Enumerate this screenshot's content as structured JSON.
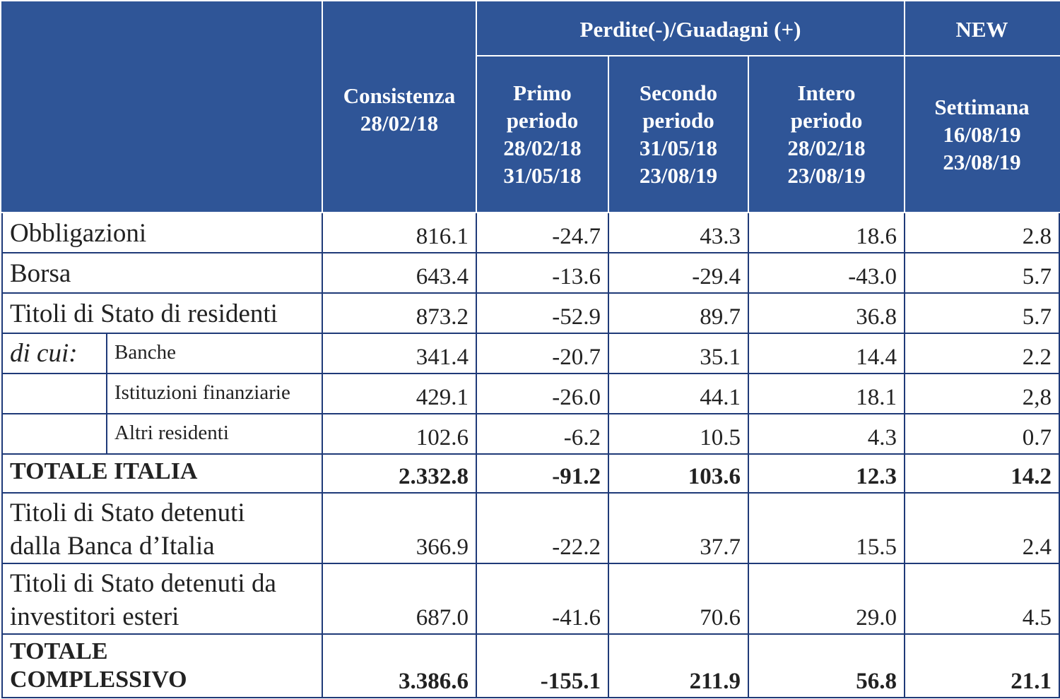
{
  "header": {
    "group_perdite": "Perdite(-)/Guadagni (+)",
    "group_new": "NEW",
    "consistenza": [
      "Consistenza",
      "28/02/18"
    ],
    "primo": [
      "Primo",
      "periodo",
      "28/02/18",
      "31/05/18"
    ],
    "secondo": [
      "Secondo",
      "periodo",
      "31/05/18",
      "23/08/19"
    ],
    "intero": [
      "Intero",
      "periodo",
      "28/02/18",
      "23/08/19"
    ],
    "settimana": [
      "Settimana",
      "16/08/19",
      "23/08/19"
    ]
  },
  "rows": [
    {
      "label": "Obbligazioni",
      "values": [
        "816.1",
        "-24.7",
        "43.3",
        "18.6",
        "2.8"
      ]
    },
    {
      "label": "Borsa",
      "values": [
        "643.4",
        "-13.6",
        "-29.4",
        "-43.0",
        "5.7"
      ]
    },
    {
      "label": "Titoli di Stato di residenti",
      "values": [
        "873.2",
        "-52.9",
        "89.7",
        "36.8",
        "5.7"
      ]
    },
    {
      "prefix": "di cui:",
      "label": "Banche",
      "values": [
        "341.4",
        "-20.7",
        "35.1",
        "14.4",
        "2.2"
      ]
    },
    {
      "label": "Istituzioni finanziarie",
      "values": [
        "429.1",
        "-26.0",
        "44.1",
        "18.1",
        "2,8"
      ]
    },
    {
      "label": "Altri residenti",
      "values": [
        "102.6",
        "-6.2",
        "10.5",
        "4.3",
        "0.7"
      ]
    },
    {
      "label": "TOTALE ITALIA",
      "values": [
        "2.332.8",
        "-91.2",
        "103.6",
        "12.3",
        "14.2"
      ]
    },
    {
      "label": [
        "Titoli di Stato detenuti",
        "dalla Banca d’Italia"
      ],
      "values": [
        "366.9",
        "-22.2",
        "37.7",
        "15.5",
        "2.4"
      ]
    },
    {
      "label": [
        "Titoli di Stato detenuti da",
        "investitori esteri"
      ],
      "values": [
        "687.0",
        "-41.6",
        "70.6",
        "29.0",
        "4.5"
      ]
    },
    {
      "label": [
        "TOTALE",
        "COMPLESSIVO"
      ],
      "values": [
        "3.386.6",
        "-155.1",
        "211.9",
        "56.8",
        "21.1"
      ]
    }
  ]
}
